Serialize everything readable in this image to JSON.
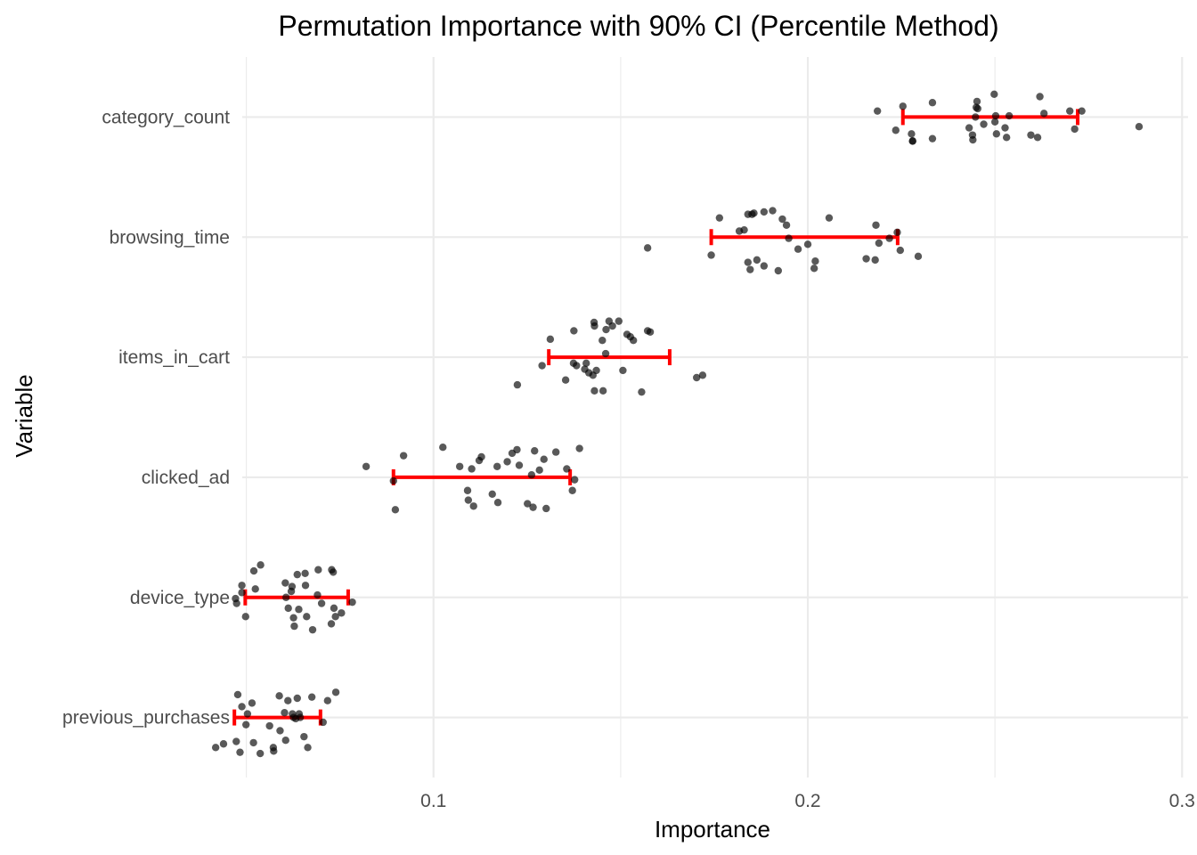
{
  "chart_data": {
    "type": "scatter",
    "title": "Permutation Importance with 90% CI (Percentile Method)",
    "xlabel": "Importance",
    "ylabel": "Variable",
    "xlim": [
      0.0489,
      0.3016
    ],
    "x_ticks": [
      0.1,
      0.2,
      0.3
    ],
    "x_tick_labels": [
      "0.1",
      "0.2",
      "0.3"
    ],
    "grid": true,
    "categories": [
      "category_count",
      "browsing_time",
      "items_in_cart",
      "clicked_ad",
      "device_type",
      "previous_purchases"
    ],
    "ci_color": "#ff0000",
    "point_color": "#000000",
    "ci_90": [
      {
        "variable": "category_count",
        "lower": 0.2254,
        "upper": 0.2721
      },
      {
        "variable": "browsing_time",
        "lower": 0.1742,
        "upper": 0.224
      },
      {
        "variable": "items_in_cart",
        "lower": 0.1308,
        "upper": 0.1631
      },
      {
        "variable": "clicked_ad",
        "lower": 0.0893,
        "upper": 0.1365
      },
      {
        "variable": "device_type",
        "lower": 0.0497,
        "upper": 0.0772
      },
      {
        "variable": "previous_purchases",
        "lower": 0.0468,
        "upper": 0.0698
      }
    ],
    "series": [
      {
        "variable": "category_count",
        "x": [
          0.2186,
          0.2254,
          0.2235,
          0.2277,
          0.228,
          0.228,
          0.2333,
          0.2333,
          0.2431,
          0.244,
          0.2441,
          0.2448,
          0.245,
          0.2452,
          0.2454,
          0.247,
          0.2498,
          0.25,
          0.2502,
          0.2504,
          0.2527,
          0.2531,
          0.2538,
          0.2596,
          0.2614,
          0.262,
          0.2631,
          0.27,
          0.2713,
          0.2732,
          0.2885
        ],
        "jitter": [
          0.05,
          0.09,
          -0.11,
          -0.14,
          -0.2,
          -0.2,
          0.12,
          -0.18,
          -0.09,
          -0.15,
          -0.19,
          0.0,
          0.08,
          0.13,
          0.07,
          -0.06,
          0.19,
          -0.04,
          0.01,
          -0.14,
          -0.09,
          -0.17,
          0.01,
          -0.15,
          -0.17,
          0.17,
          0.03,
          0.05,
          -0.1,
          0.05,
          -0.08
        ]
      },
      {
        "variable": "browsing_time",
        "x": [
          0.1572,
          0.1742,
          0.1764,
          0.1817,
          0.183,
          0.184,
          0.184,
          0.1846,
          0.1851,
          0.1856,
          0.1864,
          0.1883,
          0.1883,
          0.1906,
          0.1921,
          0.1932,
          0.1949,
          0.2,
          0.2017,
          0.202,
          0.2057,
          0.2156,
          0.218,
          0.2182,
          0.219,
          0.2218,
          0.2239,
          0.2247,
          0.2295,
          0.1974,
          0.1943
        ],
        "jitter": [
          -0.09,
          -0.15,
          0.16,
          0.05,
          0.06,
          0.19,
          -0.21,
          -0.27,
          0.19,
          0.2,
          -0.19,
          -0.24,
          0.21,
          0.22,
          -0.28,
          0.15,
          -0.01,
          -0.06,
          -0.26,
          -0.2,
          0.16,
          -0.18,
          -0.19,
          0.1,
          -0.05,
          -0.01,
          0.04,
          -0.11,
          -0.16,
          -0.1,
          0.1
        ]
      },
      {
        "variable": "items_in_cart",
        "x": [
          0.1224,
          0.129,
          0.1312,
          0.1353,
          0.1375,
          0.1374,
          0.1382,
          0.1404,
          0.1408,
          0.1415,
          0.1426,
          0.1429,
          0.143,
          0.143,
          0.1435,
          0.1451,
          0.1453,
          0.1461,
          0.1469,
          0.1478,
          0.1495,
          0.1506,
          0.1517,
          0.1526,
          0.1534,
          0.1556,
          0.1572,
          0.1579,
          0.1703,
          0.1719,
          0.146
        ],
        "jitter": [
          -0.23,
          -0.07,
          0.15,
          -0.19,
          0.22,
          -0.05,
          -0.07,
          -0.1,
          -0.05,
          -0.13,
          -0.15,
          0.29,
          0.26,
          -0.28,
          -0.11,
          0.14,
          -0.28,
          0.23,
          0.3,
          0.26,
          0.3,
          -0.11,
          0.19,
          0.17,
          0.14,
          -0.29,
          0.22,
          0.21,
          -0.17,
          -0.15,
          0.03
        ]
      },
      {
        "variable": "clicked_ad",
        "x": [
          0.082,
          0.0893,
          0.0898,
          0.092,
          0.1025,
          0.107,
          0.1091,
          0.1093,
          0.1102,
          0.1107,
          0.1122,
          0.1157,
          0.1172,
          0.1197,
          0.121,
          0.1223,
          0.1229,
          0.1251,
          0.1262,
          0.1266,
          0.127,
          0.1283,
          0.1295,
          0.1301,
          0.1327,
          0.1356,
          0.1371,
          0.1377,
          0.139,
          0.1128,
          0.117
        ],
        "jitter": [
          0.09,
          -0.03,
          -0.27,
          0.18,
          0.25,
          0.09,
          -0.11,
          -0.19,
          0.07,
          -0.24,
          0.14,
          -0.14,
          -0.21,
          0.13,
          0.2,
          0.23,
          0.1,
          -0.22,
          0.02,
          -0.25,
          0.22,
          0.06,
          0.15,
          -0.26,
          0.21,
          0.07,
          -0.11,
          -0.02,
          0.24,
          0.17,
          0.09
        ]
      },
      {
        "variable": "device_type",
        "x": [
          0.0471,
          0.0474,
          0.0488,
          0.0488,
          0.0498,
          0.052,
          0.0524,
          0.0538,
          0.0604,
          0.0606,
          0.0612,
          0.062,
          0.0622,
          0.0626,
          0.0628,
          0.0636,
          0.064,
          0.0658,
          0.0661,
          0.0677,
          0.0692,
          0.0701,
          0.0727,
          0.0728,
          0.0732,
          0.0734,
          0.0738,
          0.0754,
          0.0783,
          0.069,
          0.0657
        ],
        "jitter": [
          -0.01,
          -0.05,
          0.04,
          0.1,
          -0.16,
          0.22,
          0.07,
          0.27,
          0.12,
          0.0,
          -0.09,
          0.05,
          0.09,
          -0.17,
          -0.24,
          0.19,
          -0.1,
          0.1,
          -0.16,
          -0.27,
          0.23,
          -0.05,
          -0.22,
          0.23,
          0.21,
          -0.09,
          -0.16,
          -0.13,
          -0.04,
          0.02,
          0.2
        ]
      },
      {
        "variable": "previous_purchases",
        "x": [
          0.0418,
          0.0439,
          0.0473,
          0.0477,
          0.0483,
          0.0488,
          0.0499,
          0.0503,
          0.0515,
          0.0519,
          0.0537,
          0.0562,
          0.0572,
          0.059,
          0.0602,
          0.0605,
          0.0611,
          0.0623,
          0.0626,
          0.0632,
          0.0636,
          0.0644,
          0.0654,
          0.0664,
          0.0675,
          0.0705,
          0.0717,
          0.0739,
          0.0573,
          0.0588,
          0.0641
        ],
        "jitter": [
          -0.25,
          -0.22,
          -0.2,
          0.19,
          -0.29,
          0.09,
          -0.06,
          0.03,
          0.12,
          -0.21,
          -0.3,
          -0.07,
          -0.25,
          -0.11,
          0.04,
          -0.19,
          0.14,
          0.03,
          0.0,
          -0.01,
          0.16,
          0.0,
          -0.16,
          -0.25,
          0.17,
          -0.04,
          0.14,
          0.21,
          -0.28,
          0.18,
          0.03
        ]
      }
    ]
  }
}
